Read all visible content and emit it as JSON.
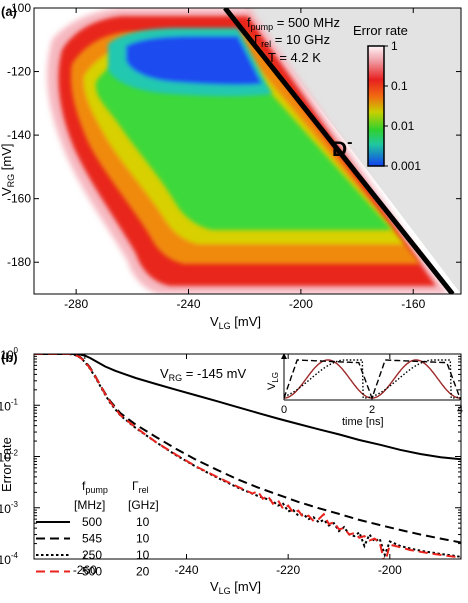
{
  "chart_data": [
    {
      "panel": "(a)",
      "type": "heatmap",
      "xlabel_main": "V",
      "xlabel_sub": "LG",
      "xlabel_unit": " [mV]",
      "ylabel_main": "V",
      "ylabel_sub": "RG",
      "ylabel_unit": " [mV]",
      "xlim": [
        -295,
        -143
      ],
      "ylim": [
        -190,
        -100
      ],
      "xticks": [
        -280,
        -240,
        -200,
        -160
      ],
      "yticks": [
        -100,
        -120,
        -140,
        -160,
        -180
      ],
      "annotations": {
        "f_main": "f",
        "f_sub": "pump",
        "f_value": " = 500 MHz",
        "g_main": "Γ",
        "g_sub": "rel",
        "g_value": " = 10 GHz",
        "temperature": "T = 4.2 K",
        "region": "D",
        "region_sup": "-"
      },
      "colorbar": {
        "title": "Error rate",
        "scale": "log",
        "range": [
          0.001,
          1
        ],
        "ticks": [
          {
            "value": 1,
            "label": "1"
          },
          {
            "value": 0.1,
            "label": "0.1"
          },
          {
            "value": 0.01,
            "label": "0.01"
          },
          {
            "value": 0.001,
            "label": "0.001"
          }
        ]
      },
      "boundary_line": {
        "from": [
          -227,
          -100
        ],
        "to": [
          -146,
          -190
        ]
      },
      "shaded_region_color": "#e3e3e3"
    },
    {
      "panel": "(b)",
      "type": "line",
      "xlabel_main": "V",
      "xlabel_sub": "LG",
      "xlabel_unit": " [mV]",
      "ylabel": "Error rate",
      "xlim": [
        -270,
        -186
      ],
      "ylim": [
        0.0001,
        1
      ],
      "yscale": "log",
      "xticks": [
        -260,
        -240,
        -220,
        -200
      ],
      "yticks": [
        {
          "value": 1,
          "base": "10",
          "exp": "0"
        },
        {
          "value": 0.1,
          "base": "10",
          "exp": "-1"
        },
        {
          "value": 0.01,
          "base": "10",
          "exp": "-2"
        },
        {
          "value": 0.001,
          "base": "10",
          "exp": "-3"
        },
        {
          "value": 0.0001,
          "base": "10",
          "exp": "-4"
        }
      ],
      "annotation_main": "V",
      "annotation_sub": "RG",
      "annotation_value": " = -145 mV",
      "legend": {
        "placement": "bottom-left",
        "col1_main": "f",
        "col1_sub": "pump",
        "col1_unit": "[MHz]",
        "col2_main": "Γ",
        "col2_sub": "rel",
        "col2_unit": "[GHz]",
        "rows": [
          {
            "f": "500",
            "g": "10"
          },
          {
            "f": "545",
            "g": "10"
          },
          {
            "f": "250",
            "g": "10"
          },
          {
            "f": "500",
            "g": "20"
          }
        ]
      },
      "series": [
        {
          "style": "solid",
          "color": "#000000",
          "points": [
            [
              -270,
              1
            ],
            [
              -262,
              1
            ],
            [
              -261,
              0.98
            ],
            [
              -260,
              0.93
            ],
            [
              -259,
              0.84
            ],
            [
              -258,
              0.74
            ],
            [
              -257,
              0.65
            ],
            [
              -256,
              0.57
            ],
            [
              -254,
              0.47
            ],
            [
              -252,
              0.4
            ],
            [
              -250,
              0.34
            ],
            [
              -246,
              0.26
            ],
            [
              -242,
              0.2
            ],
            [
              -238,
              0.155
            ],
            [
              -234,
              0.12
            ],
            [
              -230,
              0.092
            ],
            [
              -226,
              0.071
            ],
            [
              -222,
              0.055
            ],
            [
              -218,
              0.043
            ],
            [
              -214,
              0.034
            ],
            [
              -210,
              0.027
            ],
            [
              -206,
              0.021
            ],
            [
              -202,
              0.017
            ],
            [
              -198,
              0.0135
            ],
            [
              -194,
              0.0112
            ],
            [
              -190,
              0.0097
            ],
            [
              -186,
              0.0088
            ]
          ]
        },
        {
          "style": "dashed",
          "color": "#000000",
          "points": [
            [
              -270,
              1
            ],
            [
              -263,
              1
            ],
            [
              -262,
              0.97
            ],
            [
              -261,
              0.88
            ],
            [
              -260,
              0.73
            ],
            [
              -259,
              0.55
            ],
            [
              -258,
              0.38
            ],
            [
              -257,
              0.25
            ],
            [
              -256,
              0.17
            ],
            [
              -255,
              0.12
            ],
            [
              -253,
              0.07
            ],
            [
              -250,
              0.042
            ],
            [
              -246,
              0.024
            ],
            [
              -242,
              0.014
            ],
            [
              -238,
              0.0085
            ],
            [
              -234,
              0.0055
            ],
            [
              -230,
              0.0036
            ],
            [
              -226,
              0.0025
            ],
            [
              -222,
              0.0018
            ],
            [
              -218,
              0.0013
            ],
            [
              -214,
              0.00098
            ],
            [
              -210,
              0.00076
            ],
            [
              -206,
              0.00058
            ],
            [
              -202,
              0.00046
            ],
            [
              -198,
              0.00037
            ],
            [
              -194,
              0.0003
            ],
            [
              -190,
              0.00025
            ],
            [
              -186,
              0.00021
            ]
          ]
        },
        {
          "style": "dotted",
          "color": "#000000",
          "points": [
            [
              -270,
              1
            ],
            [
              -263,
              1
            ],
            [
              -262,
              0.96
            ],
            [
              -261,
              0.86
            ],
            [
              -260,
              0.7
            ],
            [
              -259,
              0.52
            ],
            [
              -258,
              0.36
            ],
            [
              -257,
              0.24
            ],
            [
              -256,
              0.16
            ],
            [
              -255,
              0.11
            ],
            [
              -253,
              0.063
            ],
            [
              -250,
              0.036
            ],
            [
              -246,
              0.019
            ],
            [
              -242,
              0.0105
            ],
            [
              -238,
              0.0062
            ],
            [
              -234,
              0.0039
            ],
            [
              -230,
              0.0025
            ],
            [
              -226,
              0.0017
            ],
            [
              -223,
              0.00135
            ],
            [
              -222,
              0.0011
            ],
            [
              -221,
              0.0012
            ],
            [
              -220,
              0.00085
            ],
            [
              -219,
              0.0009
            ],
            [
              -218,
              0.0007
            ],
            [
              -217,
              0.00075
            ],
            [
              -216,
              0.0006
            ],
            [
              -215,
              0.00065
            ],
            [
              -214,
              0.00052
            ],
            [
              -213,
              0.00058
            ],
            [
              -212,
              0.00045
            ],
            [
              -211,
              0.0005
            ],
            [
              -210,
              0.00035
            ],
            [
              -209,
              0.00042
            ],
            [
              -208,
              0.0003
            ],
            [
              -207,
              0.00028
            ],
            [
              -206,
              0.00033
            ],
            [
              -205,
              0.00018
            ],
            [
              -204,
              0.0003
            ],
            [
              -203,
              0.00022
            ],
            [
              -202,
              0.00025
            ],
            [
              -201,
              0.00012
            ],
            [
              -200,
              0.00022
            ],
            [
              -199,
              0.0002
            ],
            [
              -198,
              0.00018
            ],
            [
              -196,
              0.00016
            ],
            [
              -194,
              0.000145
            ],
            [
              -192,
              0.000135
            ],
            [
              -190,
              0.000125
            ],
            [
              -188,
              0.000118
            ],
            [
              -186,
              0.00011
            ]
          ]
        },
        {
          "style": "dashed",
          "color": "#e8231e",
          "points": [
            [
              -270,
              1
            ],
            [
              -263,
              1
            ],
            [
              -262,
              0.96
            ],
            [
              -261,
              0.87
            ],
            [
              -260,
              0.71
            ],
            [
              -259,
              0.53
            ],
            [
              -258,
              0.37
            ],
            [
              -257,
              0.25
            ],
            [
              -256,
              0.165
            ],
            [
              -255,
              0.115
            ],
            [
              -253,
              0.064
            ],
            [
              -250,
              0.037
            ],
            [
              -246,
              0.019
            ],
            [
              -242,
              0.0108
            ],
            [
              -238,
              0.0063
            ],
            [
              -234,
              0.004
            ],
            [
              -230,
              0.0026
            ],
            [
              -227,
              0.0019
            ],
            [
              -226,
              0.0021
            ],
            [
              -225,
              0.0015
            ],
            [
              -224,
              0.0017
            ],
            [
              -223,
              0.0012
            ],
            [
              -222,
              0.0014
            ],
            [
              -221,
              0.00095
            ],
            [
              -220,
              0.0011
            ],
            [
              -219,
              0.0008
            ],
            [
              -218,
              0.00088
            ],
            [
              -217,
              0.00065
            ],
            [
              -216,
              0.0007
            ],
            [
              -215,
              0.00055
            ],
            [
              -214,
              0.0006
            ],
            [
              -213,
              0.00075
            ],
            [
              -212,
              0.00048
            ],
            [
              -211,
              0.00052
            ],
            [
              -210,
              0.00038
            ],
            [
              -209,
              0.0004
            ],
            [
              -208,
              0.0003
            ],
            [
              -207,
              0.00032
            ],
            [
              -206,
              0.00026
            ],
            [
              -205,
              0.00028
            ],
            [
              -204,
              0.00023
            ],
            [
              -203,
              0.00025
            ],
            [
              -202,
              0.00021
            ],
            [
              -201,
              8e-05
            ],
            [
              -200,
              0.00019
            ],
            [
              -199,
              0.00018
            ],
            [
              -198,
              0.00017
            ],
            [
              -196,
              0.00015
            ],
            [
              -194,
              0.000138
            ],
            [
              -192,
              0.000128
            ],
            [
              -190,
              0.00012
            ],
            [
              -188,
              0.000113
            ],
            [
              -186,
              0.000106
            ]
          ]
        }
      ],
      "inset": {
        "ylabel_main": "V",
        "ylabel_sub": "LG",
        "xlabel": "time [ns]",
        "xlim": [
          0,
          4
        ],
        "xticks": [
          0,
          2,
          4
        ],
        "series": [
          {
            "name_hidden": true,
            "style": "solid",
            "color": "#9e2a2a",
            "kind": "sine"
          },
          {
            "name_hidden": true,
            "style": "dashed",
            "color": "#000000",
            "kind": "pulse"
          },
          {
            "name_hidden": true,
            "style": "dotted",
            "color": "#000000",
            "kind": "slow"
          }
        ]
      }
    }
  ]
}
